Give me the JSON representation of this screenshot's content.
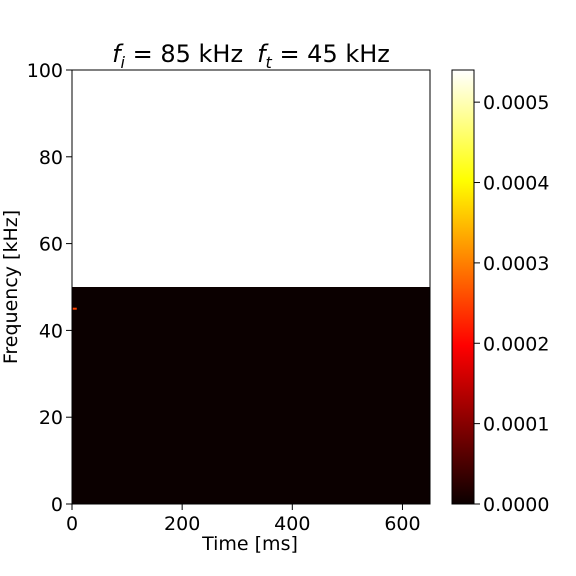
{
  "chart_data": {
    "type": "heatmap",
    "title": {
      "sym_i": "f",
      "sub_i": "i",
      "text_i": " = 85 kHz",
      "sym_t": "f",
      "sub_t": "t",
      "text_t": " = 45 kHz"
    },
    "xlabel": "Time [ms]",
    "ylabel": "Frequency [kHz]",
    "xlim": [
      0,
      650
    ],
    "ylim": [
      0,
      100
    ],
    "xticks": [
      0,
      200,
      400,
      600
    ],
    "yticks": [
      0,
      20,
      40,
      60,
      80,
      100
    ],
    "data_region": {
      "x": [
        0,
        650
      ],
      "y": [
        0,
        50
      ]
    },
    "data_fill_value": 0.0,
    "peak": {
      "time_ms": 5,
      "frequency_khz": 45,
      "value": 0.00025
    },
    "colorbar": {
      "colormap": "hot",
      "min": 0.0,
      "max": 0.00054,
      "ticks": [
        "0.0000",
        "0.0001",
        "0.0002",
        "0.0003",
        "0.0004",
        "0.0005"
      ],
      "tick_values": [
        0.0,
        0.0001,
        0.0002,
        0.0003,
        0.0004,
        0.0005
      ]
    }
  }
}
